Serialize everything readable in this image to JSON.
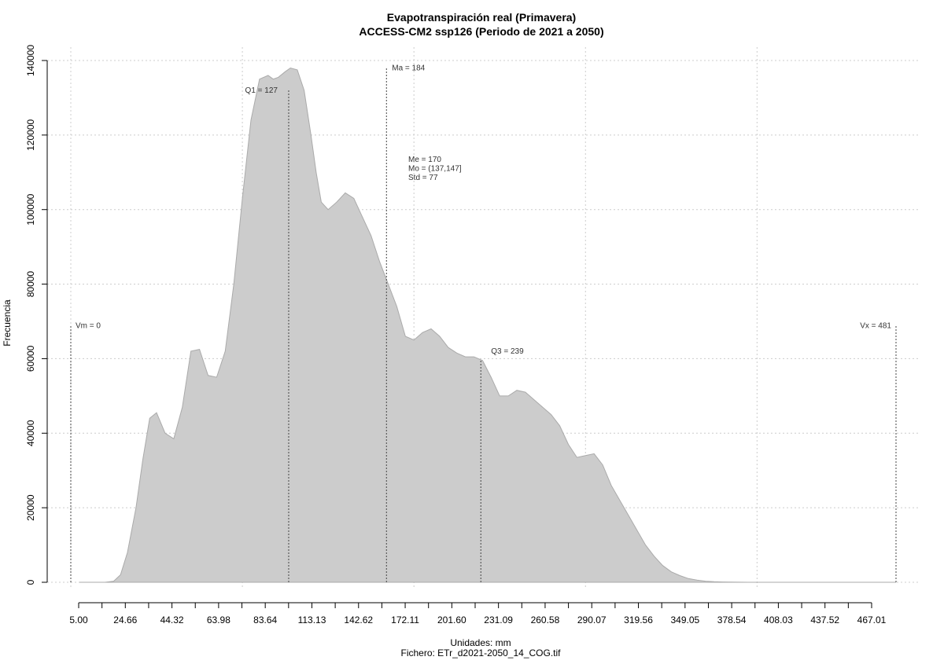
{
  "chart_data": {
    "type": "area",
    "title": "Evapotranspiración real (Primavera)",
    "subtitle": "ACCESS-CM2 ssp126 (Periodo de 2021 a 2050)",
    "xlabel": "Unidades: mm",
    "ylabel": "Frecuencia",
    "caption": "Fichero: ETr_d2021-2050_14_COG.tif",
    "xlim": [
      0,
      481
    ],
    "ylim": [
      0,
      140000
    ],
    "grid": true,
    "x_tick_labels": [
      "5.00",
      "24.66",
      "44.32",
      "63.98",
      "83.64",
      "113.13",
      "142.62",
      "172.11",
      "201.60",
      "231.09",
      "260.58",
      "290.07",
      "319.56",
      "349.05",
      "378.54",
      "408.03",
      "437.52",
      "467.01"
    ],
    "y_ticks": [
      0,
      20000,
      40000,
      60000,
      80000,
      100000,
      120000,
      140000
    ],
    "series": [
      {
        "x": [
          5,
          20,
          25,
          29,
          33,
          38,
          42,
          46,
          50,
          55,
          60,
          65,
          70,
          75,
          80,
          85,
          90,
          95,
          100,
          105,
          110,
          115,
          118,
          121,
          125,
          128,
          132,
          136,
          140,
          143,
          146,
          150,
          155,
          160,
          165,
          170,
          175,
          180,
          185,
          190,
          195,
          200,
          205,
          210,
          215,
          220,
          225,
          230,
          235,
          240,
          245,
          250,
          255,
          260,
          265,
          270,
          275,
          280,
          285,
          290,
          295,
          300,
          305,
          310,
          315,
          320,
          325,
          330,
          335,
          340,
          345,
          350,
          355,
          360,
          365,
          370,
          375,
          380,
          385,
          390,
          395,
          400,
          405,
          410,
          420,
          440,
          481
        ],
        "y": [
          0,
          0,
          300,
          2000,
          8000,
          20000,
          33000,
          44000,
          45500,
          40000,
          38500,
          47000,
          62000,
          62500,
          55500,
          55000,
          62000,
          80000,
          103000,
          124000,
          135000,
          136000,
          135000,
          135500,
          137000,
          138000,
          137500,
          132000,
          120000,
          110000,
          102000,
          100000,
          102000,
          104500,
          103000,
          98000,
          93000,
          86000,
          80000,
          74000,
          66000,
          65000,
          67000,
          68000,
          66000,
          63000,
          61500,
          60500,
          60500,
          59500,
          55000,
          50000,
          50000,
          51500,
          51000,
          49000,
          47000,
          45000,
          42000,
          37000,
          33500,
          34000,
          34500,
          31500,
          26000,
          22000,
          18000,
          14000,
          10000,
          7000,
          4500,
          2800,
          1800,
          1000,
          600,
          300,
          150,
          80,
          40,
          20,
          10,
          5,
          3,
          2,
          1,
          0,
          0
        ]
      }
    ],
    "annotations": {
      "vm": {
        "x": 0,
        "label": "Vm = 0"
      },
      "vx": {
        "x": 481,
        "label": "Vx = 481"
      },
      "q1": {
        "x": 127,
        "label": "Q1 = 127"
      },
      "ma": {
        "x": 184,
        "label": "Ma = 184"
      },
      "q3": {
        "x": 239,
        "label": "Q3 = 239"
      },
      "stats": [
        "Me = 170",
        "Mo = (137,147]",
        "Std = 77"
      ]
    },
    "colors": {
      "fill": "#cccccc",
      "outline": "#aaaaaa",
      "grid": "#cccccc",
      "axis": "#000000"
    }
  }
}
